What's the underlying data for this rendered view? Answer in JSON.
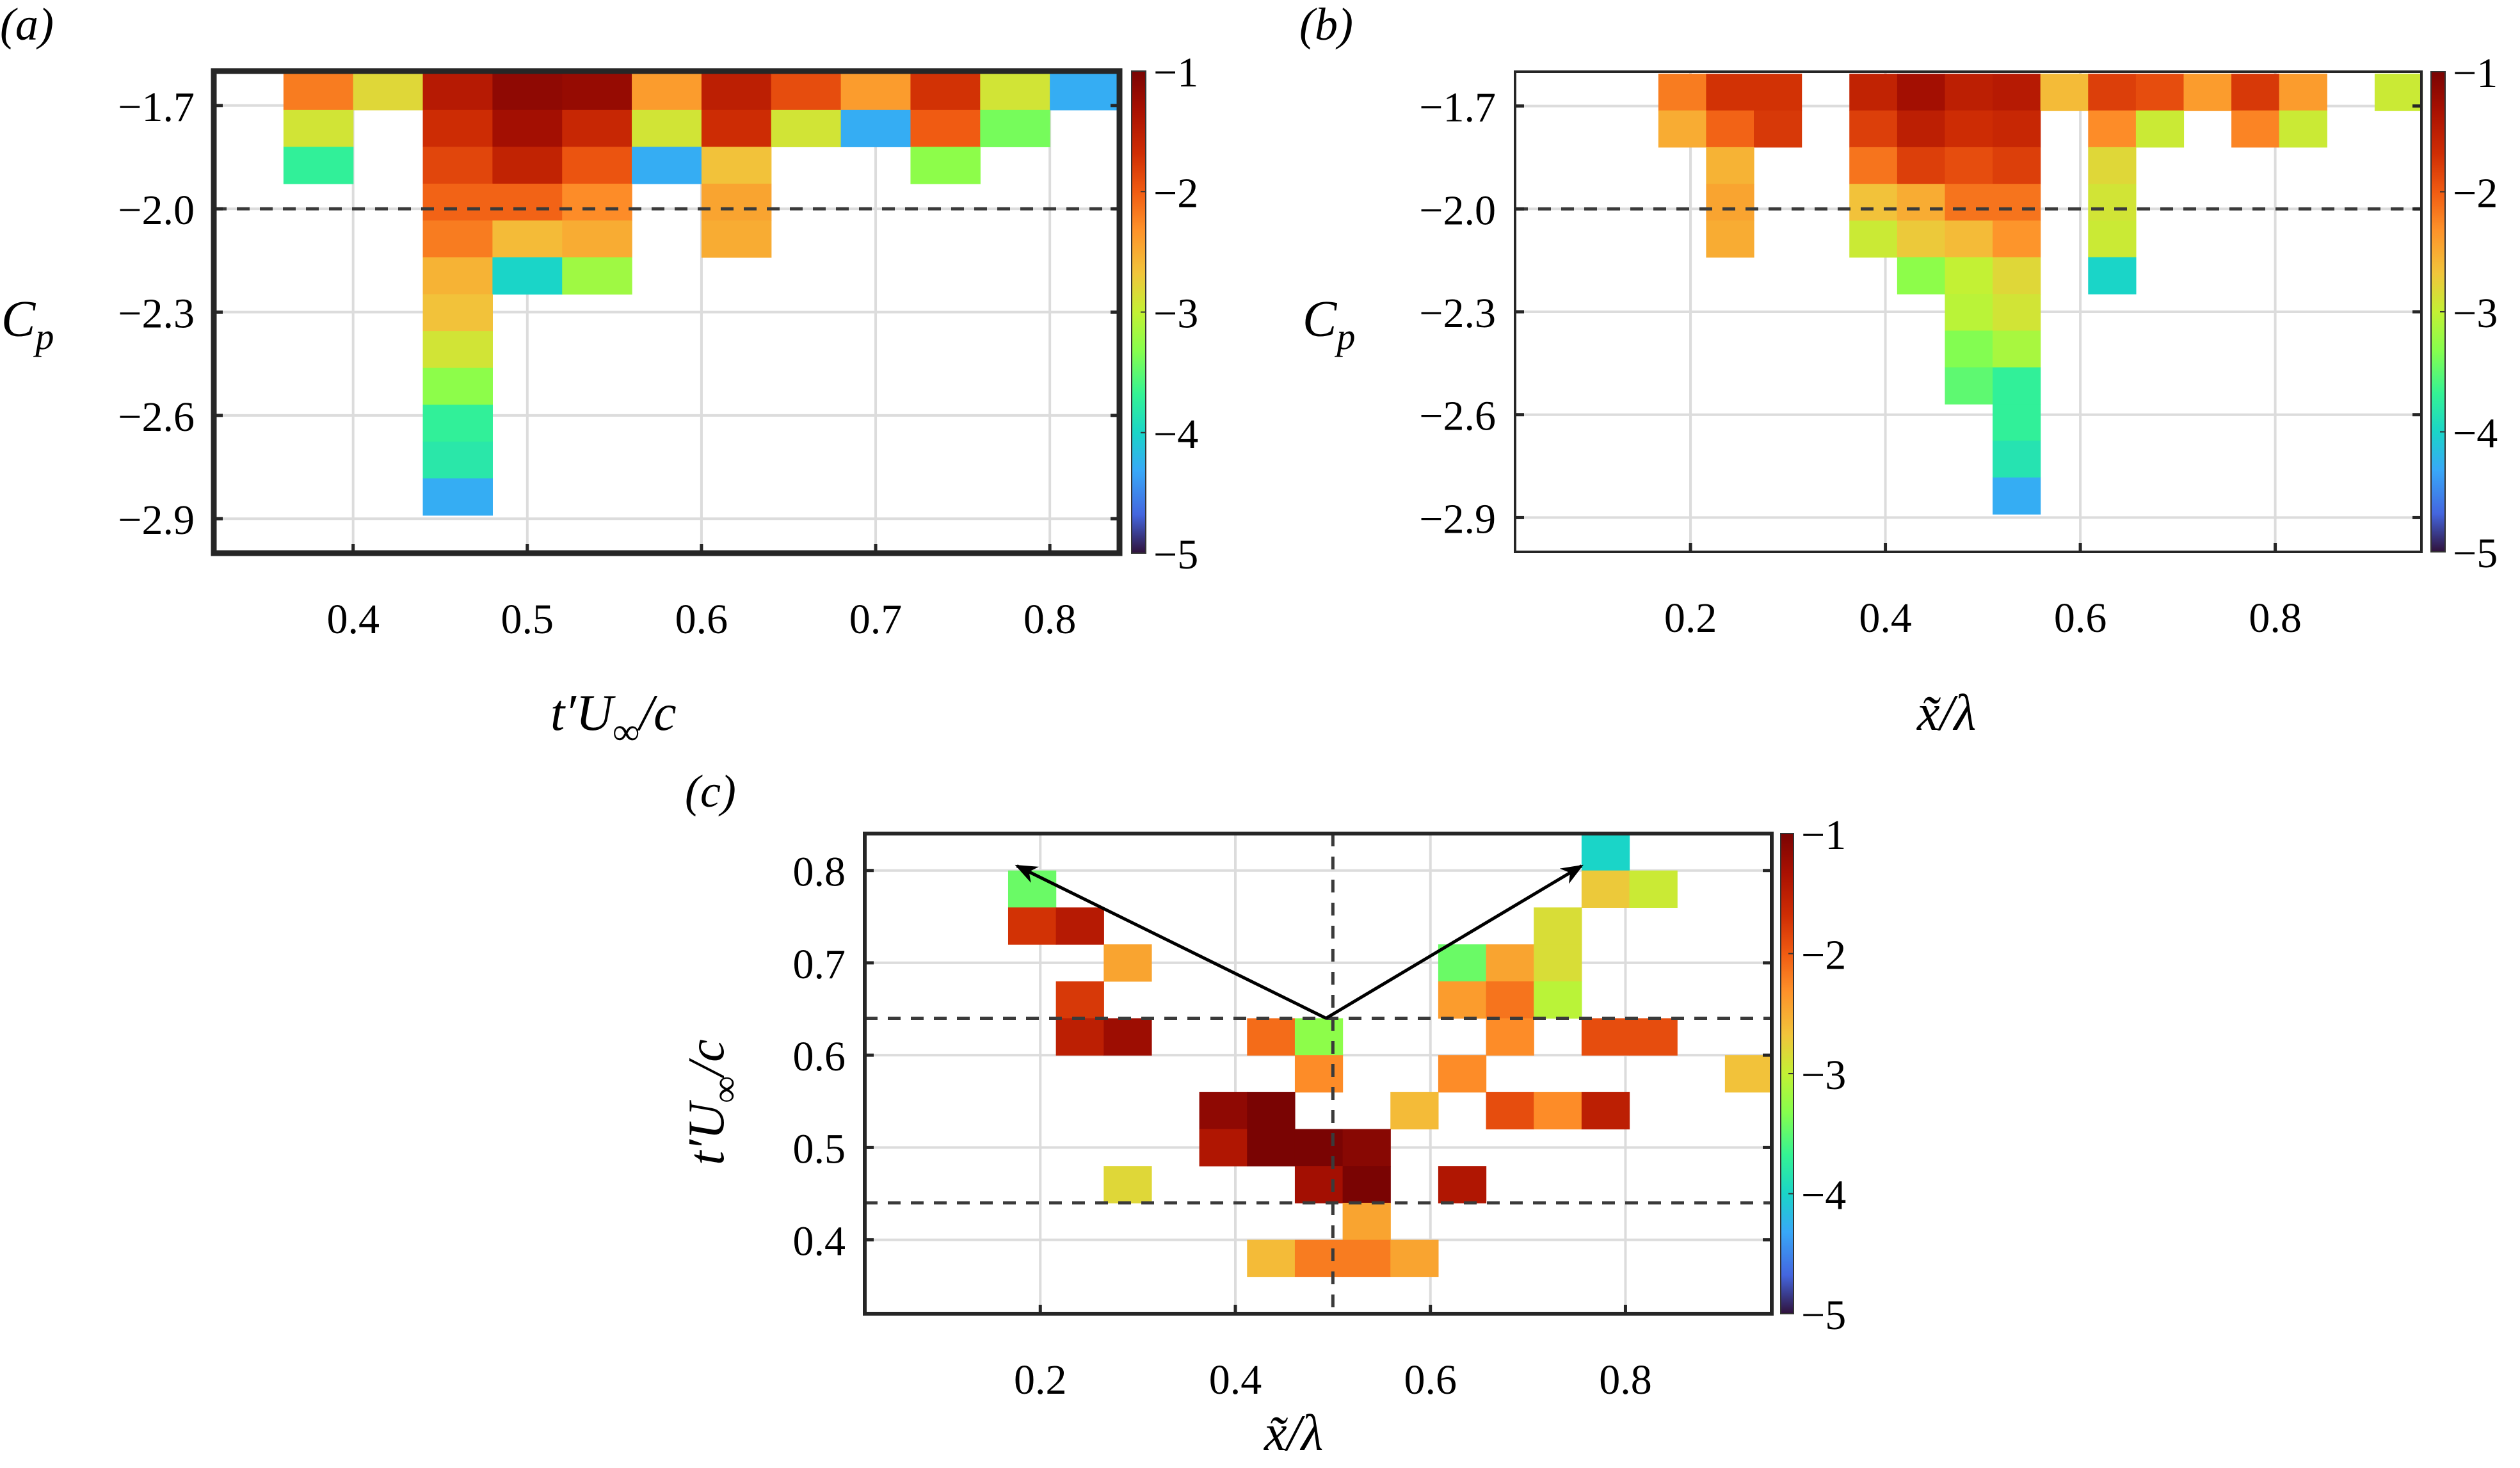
{
  "figure": {
    "panels": [
      {
        "id": "a",
        "label": "(a)",
        "xlabel": "t′U∞/c",
        "ylabel": "Cp"
      },
      {
        "id": "b",
        "label": "(b)",
        "xlabel": "x̃/λ",
        "ylabel": "Cp"
      },
      {
        "id": "c",
        "label": "(c)",
        "xlabel": "x̃/λ",
        "ylabel": "t′U∞/c"
      }
    ],
    "colorbar": {
      "ticks": [
        "−1",
        "−2",
        "−3",
        "−4",
        "−5"
      ],
      "range": [
        -5,
        -1
      ],
      "colormap": "turbo"
    }
  },
  "chart_data": [
    {
      "type": "heatmap",
      "title": "(a)",
      "xlabel": "t'U∞/c",
      "ylabel": "Cp",
      "xlim": [
        0.32,
        0.84
      ],
      "ylim": [
        -3.0,
        -1.6
      ],
      "xticks": [
        0.4,
        0.5,
        0.6,
        0.7,
        0.8
      ],
      "xtick_labels": [
        "0.4",
        "0.5",
        "0.6",
        "0.7",
        "0.8"
      ],
      "yticks": [
        -1.7,
        -2.0,
        -2.3,
        -2.6,
        -2.9
      ],
      "ytick_labels": [
        "−1.7",
        "−2.0",
        "−2.3",
        "−2.6",
        "−2.9"
      ],
      "grid": true,
      "frame": "thick",
      "reference_lines": [
        {
          "orientation": "horizontal",
          "value": -2.0,
          "style": "dashed"
        }
      ],
      "x_bin_edges_start": 0.36,
      "x_bin_width": 0.04,
      "y_bin_top": -1.606,
      "y_bin_height": 0.107,
      "colorbar": {
        "label_ticks": [
          -1,
          -2,
          -3,
          -4,
          -5
        ],
        "range": [
          -5,
          -1
        ]
      },
      "cells_note": "rows from top (row 0 = highest Cp bin); col index from x_bin_edges_start; value = colour level",
      "cells": [
        [
          0,
          0,
          -2.2
        ],
        [
          0,
          1,
          -2.8
        ],
        [
          0,
          2,
          -1.45
        ],
        [
          0,
          3,
          -1.15
        ],
        [
          0,
          4,
          -1.2
        ],
        [
          0,
          5,
          -2.4
        ],
        [
          0,
          6,
          -1.5
        ],
        [
          0,
          7,
          -1.9
        ],
        [
          0,
          8,
          -2.4
        ],
        [
          0,
          9,
          -1.7
        ],
        [
          0,
          10,
          -2.9
        ],
        [
          0,
          11,
          -4.3
        ],
        [
          1,
          0,
          -2.9
        ],
        [
          1,
          2,
          -1.65
        ],
        [
          1,
          3,
          -1.3
        ],
        [
          1,
          4,
          -1.6
        ],
        [
          1,
          5,
          -2.9
        ],
        [
          1,
          6,
          -1.65
        ],
        [
          1,
          7,
          -2.9
        ],
        [
          1,
          8,
          -4.3
        ],
        [
          1,
          9,
          -2.0
        ],
        [
          1,
          10,
          -3.4
        ],
        [
          2,
          0,
          -3.7
        ],
        [
          2,
          2,
          -1.85
        ],
        [
          2,
          3,
          -1.55
        ],
        [
          2,
          4,
          -1.95
        ],
        [
          2,
          5,
          -4.3
        ],
        [
          2,
          6,
          -2.65
        ],
        [
          2,
          9,
          -3.3
        ],
        [
          3,
          2,
          -2.05
        ],
        [
          3,
          3,
          -2.05
        ],
        [
          3,
          4,
          -2.3
        ],
        [
          3,
          6,
          -2.45
        ],
        [
          4,
          2,
          -2.2
        ],
        [
          4,
          3,
          -2.6
        ],
        [
          4,
          4,
          -2.5
        ],
        [
          4,
          6,
          -2.5
        ],
        [
          5,
          2,
          -2.55
        ],
        [
          5,
          3,
          -4.0
        ],
        [
          5,
          4,
          -3.2
        ],
        [
          6,
          2,
          -2.65
        ],
        [
          7,
          2,
          -2.9
        ],
        [
          8,
          2,
          -3.3
        ],
        [
          9,
          2,
          -3.7
        ],
        [
          10,
          2,
          -3.8
        ],
        [
          11,
          2,
          -4.3
        ]
      ]
    },
    {
      "type": "heatmap",
      "title": "(b)",
      "xlabel": "x̃/λ",
      "ylabel": "Cp",
      "xlim": [
        0.02,
        0.95
      ],
      "ylim": [
        -3.0,
        -1.6
      ],
      "xticks": [
        0.2,
        0.4,
        0.6,
        0.8
      ],
      "xtick_labels": [
        "0.2",
        "0.4",
        "0.6",
        "0.8"
      ],
      "yticks": [
        -1.7,
        -2.0,
        -2.3,
        -2.6,
        -2.9
      ],
      "ytick_labels": [
        "−1.7",
        "−2.0",
        "−2.3",
        "−2.6",
        "−2.9"
      ],
      "grid": true,
      "frame": "thin",
      "reference_lines": [
        {
          "orientation": "horizontal",
          "value": -2.0,
          "style": "dashed"
        }
      ],
      "x_bin_edges_start": 0.02,
      "x_bin_width": 0.049,
      "y_bin_top": -1.606,
      "y_bin_height": 0.107,
      "colorbar": {
        "label_ticks": [
          -1,
          -2,
          -3,
          -4,
          -5
        ],
        "range": [
          -5,
          -1
        ]
      },
      "cells": [
        [
          0,
          3,
          -2.2
        ],
        [
          0,
          4,
          -1.7
        ],
        [
          0,
          5,
          -1.7
        ],
        [
          0,
          7,
          -1.55
        ],
        [
          0,
          8,
          -1.3
        ],
        [
          0,
          9,
          -1.5
        ],
        [
          0,
          10,
          -1.45
        ],
        [
          0,
          11,
          -2.6
        ],
        [
          0,
          12,
          -1.8
        ],
        [
          0,
          13,
          -1.9
        ],
        [
          0,
          14,
          -2.4
        ],
        [
          0,
          15,
          -1.75
        ],
        [
          0,
          16,
          -2.4
        ],
        [
          0,
          18,
          -2.95
        ],
        [
          1,
          3,
          -2.5
        ],
        [
          1,
          4,
          -2.05
        ],
        [
          1,
          5,
          -1.75
        ],
        [
          1,
          7,
          -1.8
        ],
        [
          1,
          8,
          -1.5
        ],
        [
          1,
          9,
          -1.65
        ],
        [
          1,
          10,
          -1.6
        ],
        [
          1,
          12,
          -2.3
        ],
        [
          1,
          13,
          -2.95
        ],
        [
          1,
          15,
          -2.25
        ],
        [
          1,
          16,
          -2.95
        ],
        [
          2,
          4,
          -2.55
        ],
        [
          2,
          7,
          -2.15
        ],
        [
          2,
          8,
          -1.8
        ],
        [
          2,
          9,
          -1.9
        ],
        [
          2,
          10,
          -1.8
        ],
        [
          2,
          12,
          -2.8
        ],
        [
          3,
          4,
          -2.45
        ],
        [
          3,
          7,
          -2.65
        ],
        [
          3,
          8,
          -2.5
        ],
        [
          3,
          9,
          -2.15
        ],
        [
          3,
          10,
          -2.15
        ],
        [
          3,
          12,
          -2.9
        ],
        [
          4,
          4,
          -2.5
        ],
        [
          4,
          7,
          -2.95
        ],
        [
          4,
          8,
          -2.7
        ],
        [
          4,
          9,
          -2.6
        ],
        [
          4,
          10,
          -2.35
        ],
        [
          4,
          12,
          -2.95
        ],
        [
          5,
          8,
          -3.3
        ],
        [
          5,
          9,
          -3.0
        ],
        [
          5,
          10,
          -2.8
        ],
        [
          5,
          12,
          -4.0
        ],
        [
          6,
          9,
          -3.05
        ],
        [
          6,
          10,
          -2.9
        ],
        [
          7,
          9,
          -3.35
        ],
        [
          7,
          10,
          -3.15
        ],
        [
          8,
          9,
          -3.5
        ],
        [
          8,
          10,
          -3.7
        ],
        [
          9,
          10,
          -3.7
        ],
        [
          10,
          10,
          -3.85
        ],
        [
          11,
          10,
          -4.3
        ]
      ]
    },
    {
      "type": "heatmap",
      "title": "(c)",
      "xlabel": "x̃/λ",
      "ylabel": "t'U∞/c",
      "xlim": [
        0.02,
        0.95
      ],
      "ylim": [
        0.32,
        0.84
      ],
      "xticks": [
        0.2,
        0.4,
        0.6,
        0.8
      ],
      "xtick_labels": [
        "0.2",
        "0.4",
        "0.6",
        "0.8"
      ],
      "yticks": [
        0.8,
        0.7,
        0.6,
        0.5,
        0.4
      ],
      "ytick_labels": [
        "0.8",
        "0.7",
        "0.6",
        "0.5",
        "0.4"
      ],
      "grid": true,
      "frame": "medium",
      "reference_lines": [
        {
          "orientation": "horizontal",
          "value": 0.64,
          "style": "dashed"
        },
        {
          "orientation": "horizontal",
          "value": 0.44,
          "style": "dashed"
        },
        {
          "orientation": "vertical",
          "value": 0.5,
          "style": "dashed"
        }
      ],
      "annotations": [
        {
          "type": "arrow",
          "from": [
            0.493,
            0.64
          ],
          "to": [
            0.176,
            0.805
          ]
        },
        {
          "type": "arrow",
          "from": [
            0.493,
            0.64
          ],
          "to": [
            0.755,
            0.805
          ]
        }
      ],
      "x_bin_edges_start": 0.02,
      "x_bin_width": 0.049,
      "y_bin_top": 0.84,
      "y_bin_height": 0.04,
      "colorbar": {
        "label_ticks": [
          -1,
          -2,
          -3,
          -4,
          -5
        ],
        "range": [
          -5,
          -1
        ]
      },
      "cells": [
        [
          0,
          15,
          -4.0
        ],
        [
          1,
          3,
          -3.45
        ],
        [
          1,
          15,
          -2.7
        ],
        [
          1,
          16,
          -2.95
        ],
        [
          2,
          3,
          -1.7
        ],
        [
          2,
          4,
          -1.45
        ],
        [
          2,
          14,
          -2.85
        ],
        [
          3,
          5,
          -2.45
        ],
        [
          3,
          12,
          -3.45
        ],
        [
          3,
          13,
          -2.45
        ],
        [
          3,
          14,
          -2.85
        ],
        [
          4,
          4,
          -1.75
        ],
        [
          4,
          12,
          -2.4
        ],
        [
          4,
          13,
          -2.15
        ],
        [
          4,
          14,
          -3.05
        ],
        [
          5,
          4,
          -1.5
        ],
        [
          5,
          5,
          -1.25
        ],
        [
          5,
          8,
          -2.1
        ],
        [
          5,
          9,
          -3.3
        ],
        [
          5,
          13,
          -2.3
        ],
        [
          5,
          15,
          -1.9
        ],
        [
          5,
          16,
          -1.9
        ],
        [
          6,
          9,
          -2.3
        ],
        [
          6,
          12,
          -2.3
        ],
        [
          6,
          18,
          -2.65
        ],
        [
          7,
          7,
          -1.15
        ],
        [
          7,
          8,
          -1.0
        ],
        [
          7,
          11,
          -2.6
        ],
        [
          7,
          13,
          -1.9
        ],
        [
          7,
          14,
          -2.3
        ],
        [
          7,
          15,
          -1.5
        ],
        [
          8,
          7,
          -1.4
        ],
        [
          8,
          8,
          -1.0
        ],
        [
          8,
          9,
          -1.0
        ],
        [
          8,
          10,
          -1.1
        ],
        [
          9,
          5,
          -2.8
        ],
        [
          9,
          9,
          -1.3
        ],
        [
          9,
          10,
          -1.0
        ],
        [
          9,
          12,
          -1.4
        ],
        [
          10,
          10,
          -2.45
        ],
        [
          11,
          8,
          -2.6
        ],
        [
          11,
          9,
          -2.2
        ],
        [
          11,
          10,
          -2.2
        ],
        [
          11,
          11,
          -2.45
        ]
      ]
    }
  ]
}
